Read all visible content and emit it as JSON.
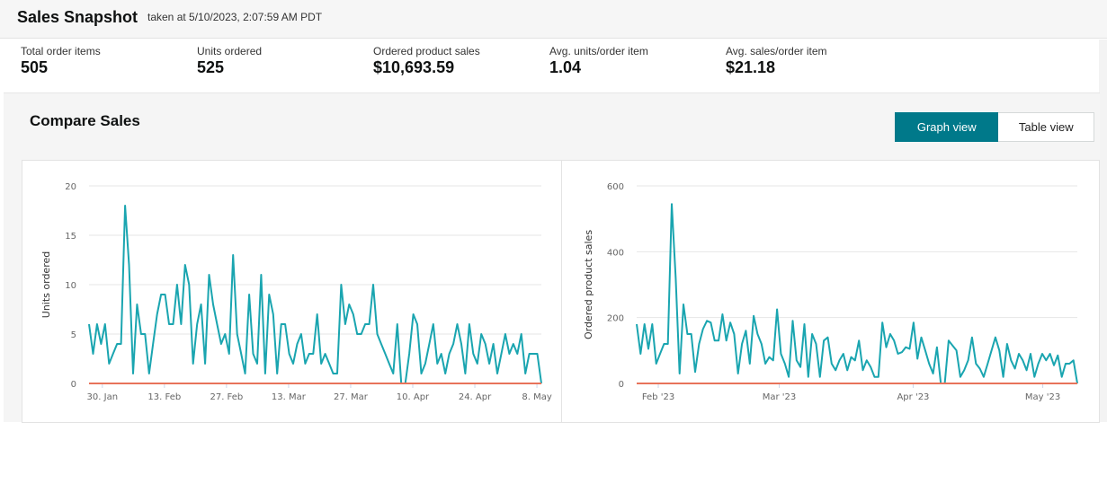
{
  "header": {
    "title": "Sales Snapshot",
    "timestamp": "taken at 5/10/2023, 2:07:59 AM PDT"
  },
  "metrics": [
    {
      "label": "Total order items",
      "value": "505"
    },
    {
      "label": "Units ordered",
      "value": "525"
    },
    {
      "label": "Ordered product sales",
      "value": "$10,693.59"
    },
    {
      "label": "Avg. units/order item",
      "value": "1.04"
    },
    {
      "label": "Avg. sales/order item",
      "value": "$21.18"
    }
  ],
  "compare": {
    "title": "Compare Sales",
    "graph_view_label": "Graph view",
    "table_view_label": "Table view",
    "active_view": "graph"
  },
  "colors": {
    "series": "#1aa5b0",
    "baseline": "#e8735a",
    "accent": "#00798a"
  },
  "chart_data": [
    {
      "type": "line",
      "ylabel": "Units ordered",
      "ylim": [
        0,
        20
      ],
      "yticks": [
        0,
        5,
        10,
        15,
        20
      ],
      "xtick_labels": [
        "30. Jan",
        "13. Feb",
        "27. Feb",
        "13. Mar",
        "27. Mar",
        "10. Apr",
        "24. Apr",
        "8. May"
      ],
      "xtick_dates": [
        "2023-01-30",
        "2023-02-13",
        "2023-02-27",
        "2023-03-13",
        "2023-03-27",
        "2023-04-10",
        "2023-04-24",
        "2023-05-08"
      ],
      "x_start": "2023-01-27",
      "x_end": "2023-05-09",
      "grid": true,
      "series": [
        {
          "name": "",
          "values": [
            6,
            3,
            6,
            4,
            6,
            2,
            3,
            4,
            4,
            18,
            12,
            1,
            8,
            5,
            5,
            1,
            4,
            7,
            9,
            9,
            6,
            6,
            10,
            6,
            12,
            10,
            2,
            6,
            8,
            2,
            11,
            8,
            6,
            4,
            5,
            3,
            13,
            5,
            3,
            1,
            9,
            3,
            2,
            11,
            1,
            9,
            7,
            1,
            6,
            6,
            3,
            2,
            4,
            5,
            2,
            3,
            3,
            7,
            2,
            3,
            2,
            1,
            1,
            10,
            6,
            8,
            7,
            5,
            5,
            6,
            6,
            10,
            5,
            4,
            3,
            2,
            1,
            6,
            0,
            0,
            3,
            7,
            6,
            1,
            2,
            4,
            6,
            2,
            3,
            1,
            3,
            4,
            6,
            4,
            1,
            6,
            3,
            2,
            5,
            4,
            2,
            4,
            1,
            3,
            5,
            3,
            4,
            3,
            5,
            1,
            3,
            3,
            3,
            0
          ]
        }
      ]
    },
    {
      "type": "line",
      "ylabel": "Ordered product sales",
      "ylim": [
        0,
        600
      ],
      "yticks": [
        0,
        200,
        400,
        600
      ],
      "xtick_labels": [
        "Feb '23",
        "Mar '23",
        "Apr '23",
        "May '23"
      ],
      "xtick_dates": [
        "2023-02-01",
        "2023-03-01",
        "2023-04-01",
        "2023-05-01"
      ],
      "x_start": "2023-01-27",
      "x_end": "2023-05-09",
      "grid": true,
      "series": [
        {
          "name": "",
          "values": [
            180,
            90,
            180,
            105,
            180,
            60,
            90,
            120,
            120,
            545,
            320,
            30,
            240,
            150,
            150,
            35,
            120,
            165,
            190,
            185,
            130,
            130,
            210,
            130,
            185,
            150,
            30,
            120,
            160,
            60,
            205,
            150,
            120,
            60,
            80,
            70,
            225,
            90,
            60,
            20,
            190,
            70,
            50,
            180,
            20,
            150,
            120,
            20,
            130,
            140,
            60,
            40,
            70,
            90,
            40,
            80,
            70,
            130,
            40,
            70,
            50,
            20,
            20,
            185,
            110,
            150,
            130,
            90,
            95,
            110,
            105,
            185,
            75,
            140,
            100,
            60,
            30,
            110,
            0,
            0,
            130,
            115,
            100,
            20,
            40,
            70,
            140,
            60,
            45,
            20,
            60,
            100,
            140,
            100,
            20,
            120,
            70,
            45,
            90,
            70,
            40,
            90,
            20,
            60,
            90,
            70,
            90,
            55,
            85,
            20,
            60,
            60,
            70,
            0
          ]
        }
      ]
    }
  ]
}
